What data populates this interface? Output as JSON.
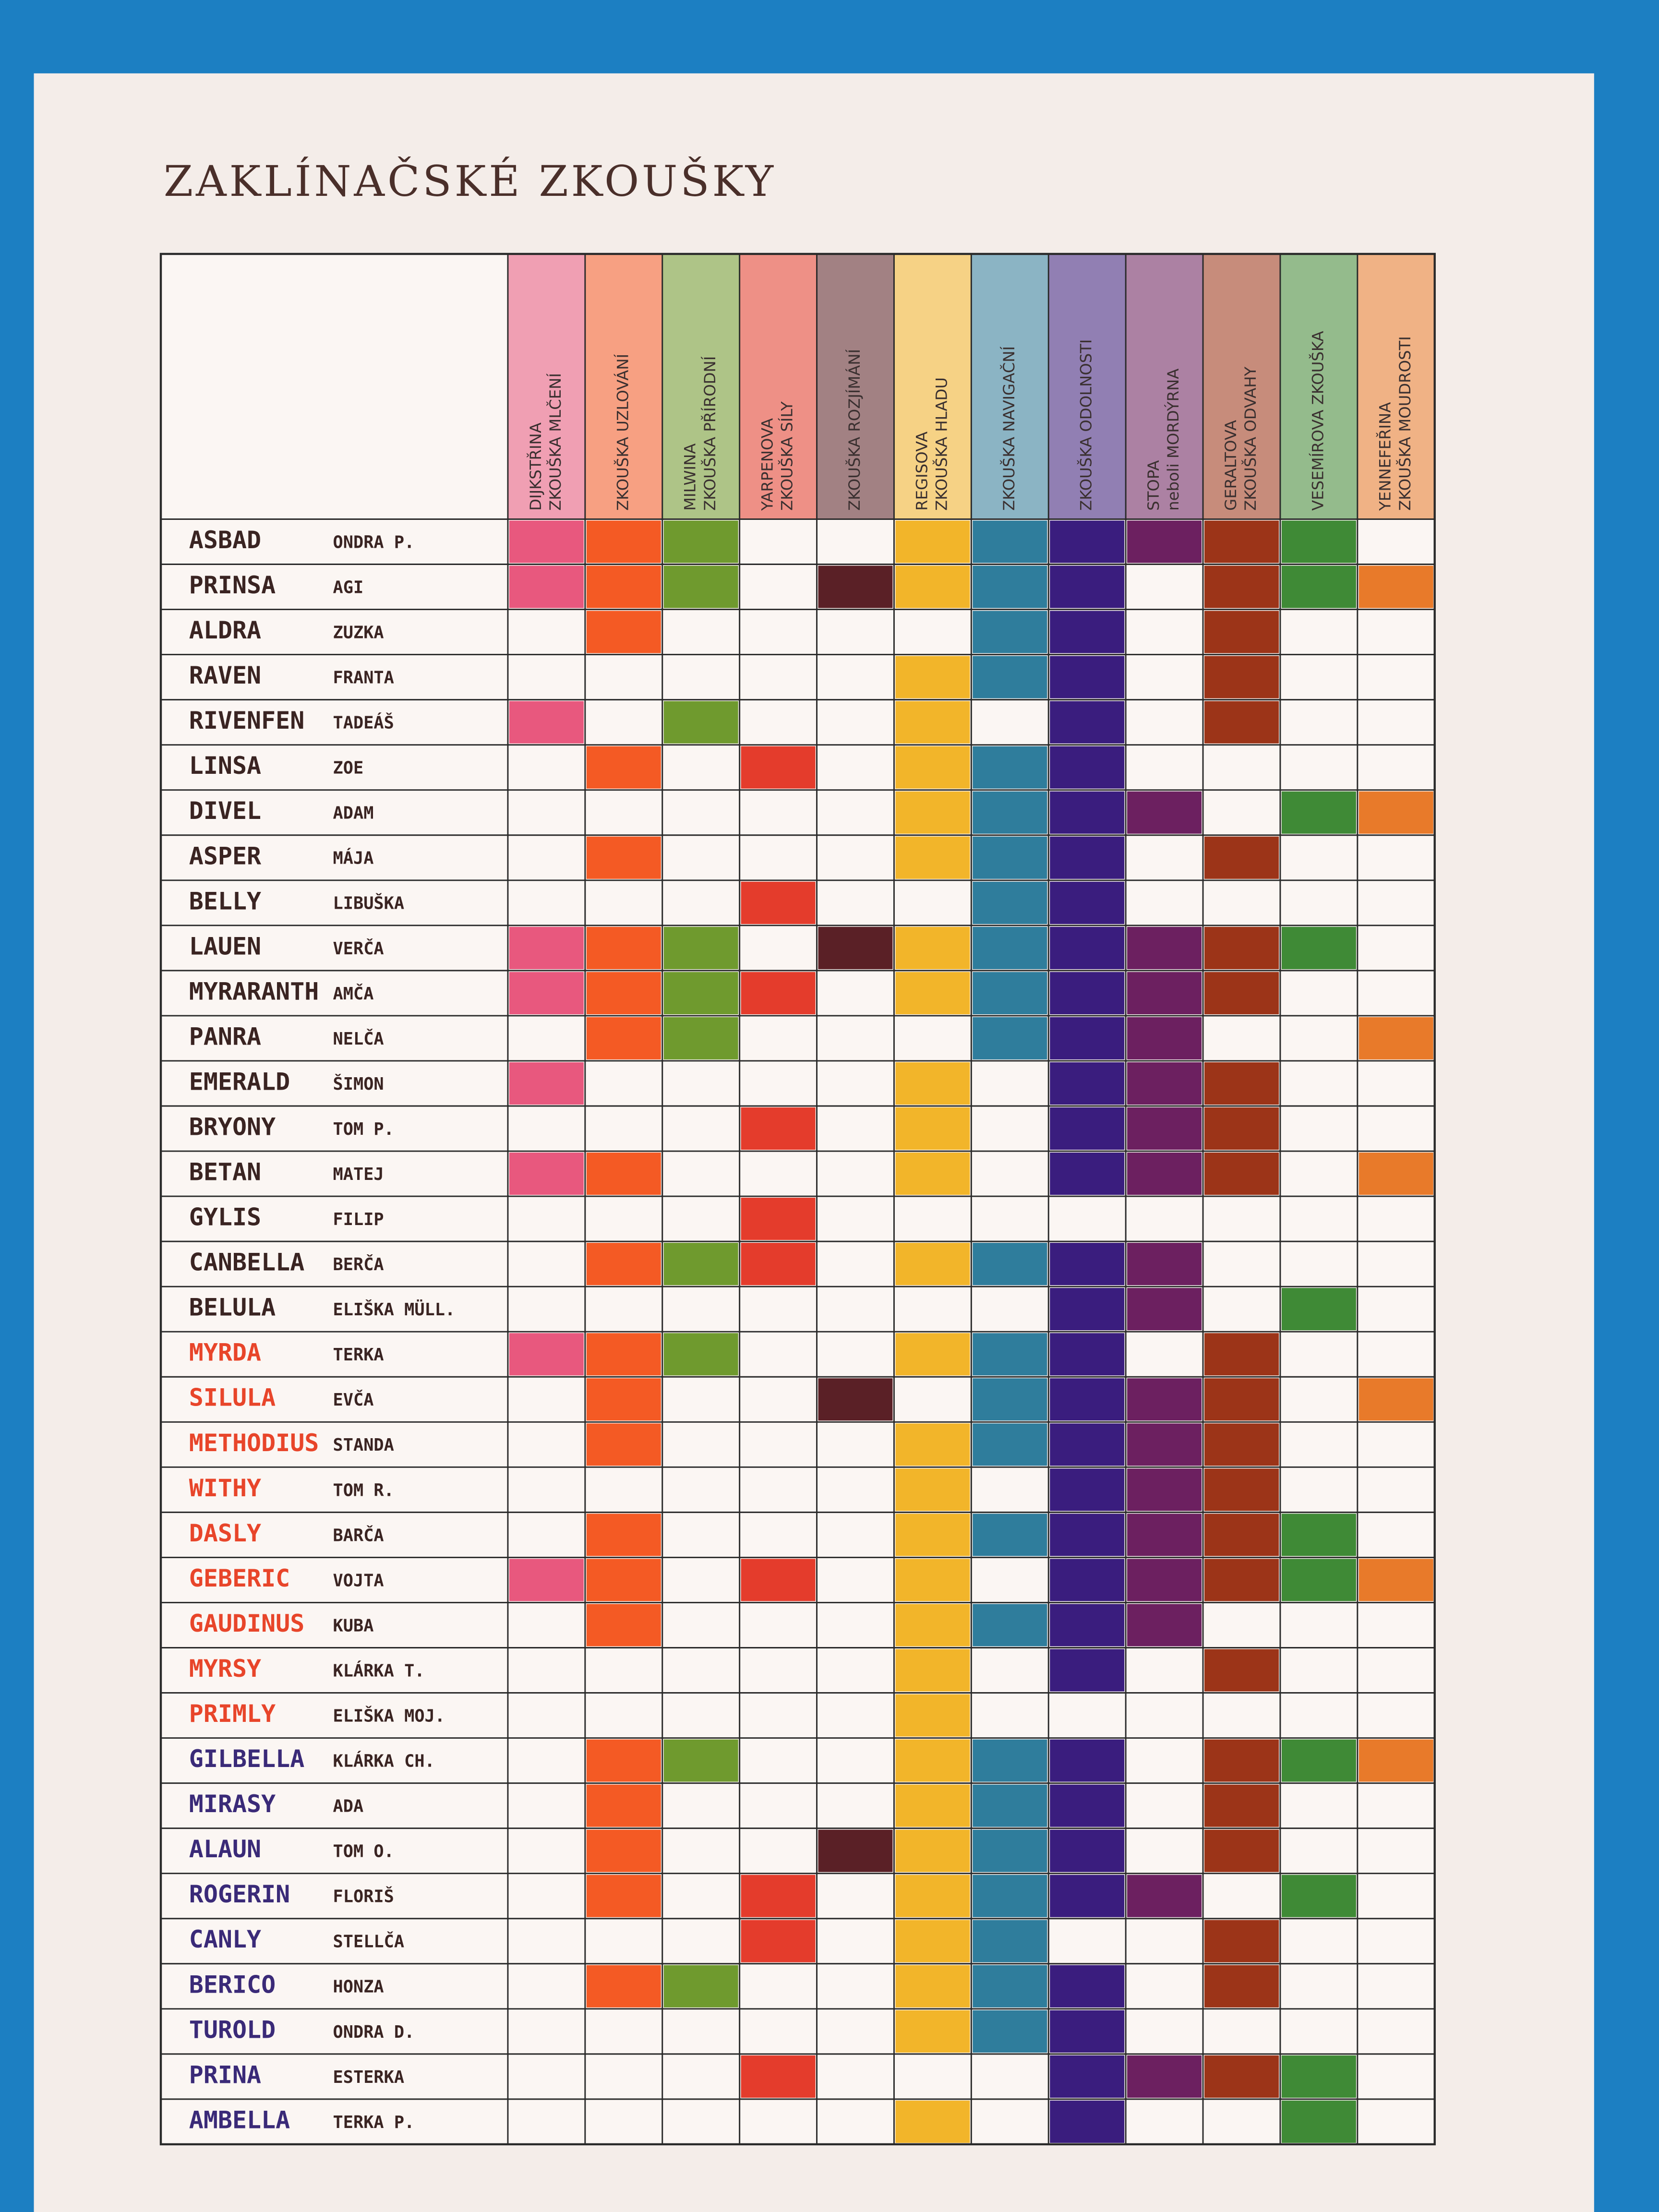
{
  "title": "ZAKLÍNAČSKÉ ZKOUŠKY",
  "columns": [
    {
      "lines": [
        "DIJKSTŘINA",
        "ZKOUŠKA MLČENÍ"
      ],
      "color": "#e8587e"
    },
    {
      "lines": [
        "ZKOUŠKA UZLOVÁNÍ"
      ],
      "color": "#f45a24"
    },
    {
      "lines": [
        "MILWINA",
        "ZKOUŠKA PŘÍRODNÍ"
      ],
      "color": "#6f9a2e"
    },
    {
      "lines": [
        "YARPENOVA",
        "ZKOUŠKA SÍLY"
      ],
      "color": "#e43c2c"
    },
    {
      "lines": [
        "ZKOUŠKA ROZJÍMÁNÍ"
      ],
      "color": "#5a2026"
    },
    {
      "lines": [
        "REGISOVA",
        "ZKOUŠKA HLADU"
      ],
      "color": "#f2b52a"
    },
    {
      "lines": [
        "ZKOUŠKA NAVIGAČNÍ"
      ],
      "color": "#2f7d9c"
    },
    {
      "lines": [
        "ZKOUŠKA ODOLNOSTI"
      ],
      "color": "#3a1d7e"
    },
    {
      "lines": [
        "STOPA",
        "neboli MORDÝRNA"
      ],
      "color": "#6c2060"
    },
    {
      "lines": [
        "GERALTOVA",
        "ZKOUŠKA ODVAHY"
      ],
      "color": "#9c3418"
    },
    {
      "lines": [
        "VESEMÍROVA ZKOUŠKA"
      ],
      "color": "#3f8a36"
    },
    {
      "lines": [
        "YENNEFEŘINA",
        "ZKOUŠKA MOUDROSTI"
      ],
      "color": "#e87a2a"
    }
  ],
  "rows": [
    {
      "name": "ASBAD",
      "nick": "ONDRA P.",
      "name_color": "#3a2422",
      "cells": [
        1,
        1,
        1,
        0,
        0,
        1,
        1,
        1,
        1,
        1,
        1,
        0
      ]
    },
    {
      "name": "PRINSA",
      "nick": "AGI",
      "name_color": "#3a2422",
      "cells": [
        1,
        1,
        1,
        0,
        1,
        1,
        1,
        1,
        0,
        1,
        1,
        1
      ]
    },
    {
      "name": "ALDRA",
      "nick": "ZUZKA",
      "name_color": "#3a2422",
      "cells": [
        0,
        1,
        0,
        0,
        0,
        0,
        1,
        1,
        0,
        1,
        0,
        0
      ]
    },
    {
      "name": "RAVEN",
      "nick": "FRANTA",
      "name_color": "#3a2422",
      "cells": [
        0,
        0,
        0,
        0,
        0,
        1,
        1,
        1,
        0,
        1,
        0,
        0
      ]
    },
    {
      "name": "RIVENFEN",
      "nick": "TADEÁŠ",
      "name_color": "#3a2422",
      "cells": [
        1,
        0,
        1,
        0,
        0,
        1,
        0,
        1,
        0,
        1,
        0,
        0
      ]
    },
    {
      "name": "LINSA",
      "nick": "ZOE",
      "name_color": "#3a2422",
      "cells": [
        0,
        1,
        0,
        1,
        0,
        1,
        1,
        1,
        0,
        0,
        0,
        0
      ]
    },
    {
      "name": "DIVEL",
      "nick": "ADAM",
      "name_color": "#3a2422",
      "cells": [
        0,
        0,
        0,
        0,
        0,
        1,
        1,
        1,
        1,
        0,
        1,
        1
      ]
    },
    {
      "name": "ASPER",
      "nick": "MÁJA",
      "name_color": "#3a2422",
      "cells": [
        0,
        1,
        0,
        0,
        0,
        1,
        1,
        1,
        0,
        1,
        0,
        0
      ]
    },
    {
      "name": "BELLY",
      "nick": "LIBUŠKA",
      "name_color": "#3a2422",
      "cells": [
        0,
        0,
        0,
        1,
        0,
        0,
        1,
        1,
        0,
        0,
        0,
        0
      ]
    },
    {
      "name": "LAUEN",
      "nick": "VERČA",
      "name_color": "#3a2422",
      "cells": [
        1,
        1,
        1,
        0,
        1,
        1,
        1,
        1,
        1,
        1,
        1,
        0
      ]
    },
    {
      "name": "MYRARANTH",
      "nick": "AMČA",
      "name_color": "#3a2422",
      "cells": [
        1,
        1,
        1,
        1,
        0,
        1,
        1,
        1,
        1,
        1,
        0,
        0
      ]
    },
    {
      "name": "PANRA",
      "nick": "NELČA",
      "name_color": "#3a2422",
      "cells": [
        0,
        1,
        1,
        0,
        0,
        0,
        1,
        1,
        1,
        0,
        0,
        1
      ]
    },
    {
      "name": "EMERALD",
      "nick": "ŠIMON",
      "name_color": "#3a2422",
      "cells": [
        1,
        0,
        0,
        0,
        0,
        1,
        0,
        1,
        1,
        1,
        0,
        0
      ]
    },
    {
      "name": "BRYONY",
      "nick": "TOM P.",
      "name_color": "#3a2422",
      "cells": [
        0,
        0,
        0,
        1,
        0,
        1,
        0,
        1,
        1,
        1,
        0,
        0
      ]
    },
    {
      "name": "BETAN",
      "nick": "MATEJ",
      "name_color": "#3a2422",
      "cells": [
        1,
        1,
        0,
        0,
        0,
        1,
        0,
        1,
        1,
        1,
        0,
        1
      ]
    },
    {
      "name": "GYLIS",
      "nick": "FILIP",
      "name_color": "#3a2422",
      "cells": [
        0,
        0,
        0,
        1,
        0,
        0,
        0,
        0,
        0,
        0,
        0,
        0
      ]
    },
    {
      "name": "CANBELLA",
      "nick": "BERČA",
      "name_color": "#3a2422",
      "cells": [
        0,
        1,
        1,
        1,
        0,
        1,
        1,
        1,
        1,
        0,
        0,
        0
      ]
    },
    {
      "name": "BELULA",
      "nick": "ELIŠKA MÜLL.",
      "name_color": "#3a2422",
      "cells": [
        0,
        0,
        0,
        0,
        0,
        0,
        0,
        1,
        1,
        0,
        1,
        0
      ]
    },
    {
      "name": "MYRDA",
      "nick": "TERKA",
      "name_color": "#e8452a",
      "cells": [
        1,
        1,
        1,
        0,
        0,
        1,
        1,
        1,
        0,
        1,
        0,
        0
      ]
    },
    {
      "name": "SILULA",
      "nick": "EVČA",
      "name_color": "#e8452a",
      "cells": [
        0,
        1,
        0,
        0,
        1,
        0,
        1,
        1,
        1,
        1,
        0,
        1
      ]
    },
    {
      "name": "METHODIUS",
      "nick": "STANDA",
      "name_color": "#e8452a",
      "cells": [
        0,
        1,
        0,
        0,
        0,
        1,
        1,
        1,
        1,
        1,
        0,
        0
      ]
    },
    {
      "name": "WITHY",
      "nick": "TOM R.",
      "name_color": "#e8452a",
      "cells": [
        0,
        0,
        0,
        0,
        0,
        1,
        0,
        1,
        1,
        1,
        0,
        0
      ]
    },
    {
      "name": "DASLY",
      "nick": "BARČA",
      "name_color": "#e8452a",
      "cells": [
        0,
        1,
        0,
        0,
        0,
        1,
        1,
        1,
        1,
        1,
        1,
        0
      ]
    },
    {
      "name": "GEBERIC",
      "nick": "VOJTA",
      "name_color": "#e8452a",
      "cells": [
        1,
        1,
        0,
        1,
        0,
        1,
        0,
        1,
        1,
        1,
        1,
        1
      ]
    },
    {
      "name": "GAUDINUS",
      "nick": "KUBA",
      "name_color": "#e8452a",
      "cells": [
        0,
        1,
        0,
        0,
        0,
        1,
        1,
        1,
        1,
        0,
        0,
        0
      ]
    },
    {
      "name": "MYRSY",
      "nick": "KLÁRKA T.",
      "name_color": "#e8452a",
      "cells": [
        0,
        0,
        0,
        0,
        0,
        1,
        0,
        1,
        0,
        1,
        0,
        0
      ]
    },
    {
      "name": "PRIMLY",
      "nick": "ELIŠKA MOJ.",
      "name_color": "#e8452a",
      "cells": [
        0,
        0,
        0,
        0,
        0,
        1,
        0,
        0,
        0,
        0,
        0,
        0
      ]
    },
    {
      "name": "GILBELLA",
      "nick": "KLÁRKA CH.",
      "name_color": "#3a2a78",
      "cells": [
        0,
        1,
        1,
        0,
        0,
        1,
        1,
        1,
        0,
        1,
        1,
        1
      ]
    },
    {
      "name": "MIRASY",
      "nick": "ADA",
      "name_color": "#3a2a78",
      "cells": [
        0,
        1,
        0,
        0,
        0,
        1,
        1,
        1,
        0,
        1,
        0,
        0
      ]
    },
    {
      "name": "ALAUN",
      "nick": "TOM O.",
      "name_color": "#3a2a78",
      "cells": [
        0,
        1,
        0,
        0,
        1,
        1,
        1,
        1,
        0,
        1,
        0,
        0
      ]
    },
    {
      "name": "ROGERIN",
      "nick": "FLORIŠ",
      "name_color": "#3a2a78",
      "cells": [
        0,
        1,
        0,
        1,
        0,
        1,
        1,
        1,
        1,
        0,
        1,
        0
      ]
    },
    {
      "name": "CANLY",
      "nick": "STELLČA",
      "name_color": "#3a2a78",
      "cells": [
        0,
        0,
        0,
        1,
        0,
        1,
        1,
        0,
        0,
        1,
        0,
        0
      ]
    },
    {
      "name": "BERICO",
      "nick": "HONZA",
      "name_color": "#3a2a78",
      "cells": [
        0,
        1,
        1,
        0,
        0,
        1,
        1,
        1,
        0,
        1,
        0,
        0
      ]
    },
    {
      "name": "TUROLD",
      "nick": "ONDRA D.",
      "name_color": "#3a2a78",
      "cells": [
        0,
        0,
        0,
        0,
        0,
        1,
        1,
        1,
        0,
        0,
        0,
        0
      ]
    },
    {
      "name": "PRINA",
      "nick": "ESTERKA",
      "name_color": "#3a2a78",
      "cells": [
        0,
        0,
        0,
        1,
        0,
        0,
        0,
        1,
        1,
        1,
        1,
        0
      ]
    },
    {
      "name": "AMBELLA",
      "nick": "TERKA P.",
      "name_color": "#3a2a78",
      "cells": [
        0,
        0,
        0,
        0,
        0,
        1,
        0,
        1,
        0,
        0,
        1,
        0
      ]
    }
  ]
}
